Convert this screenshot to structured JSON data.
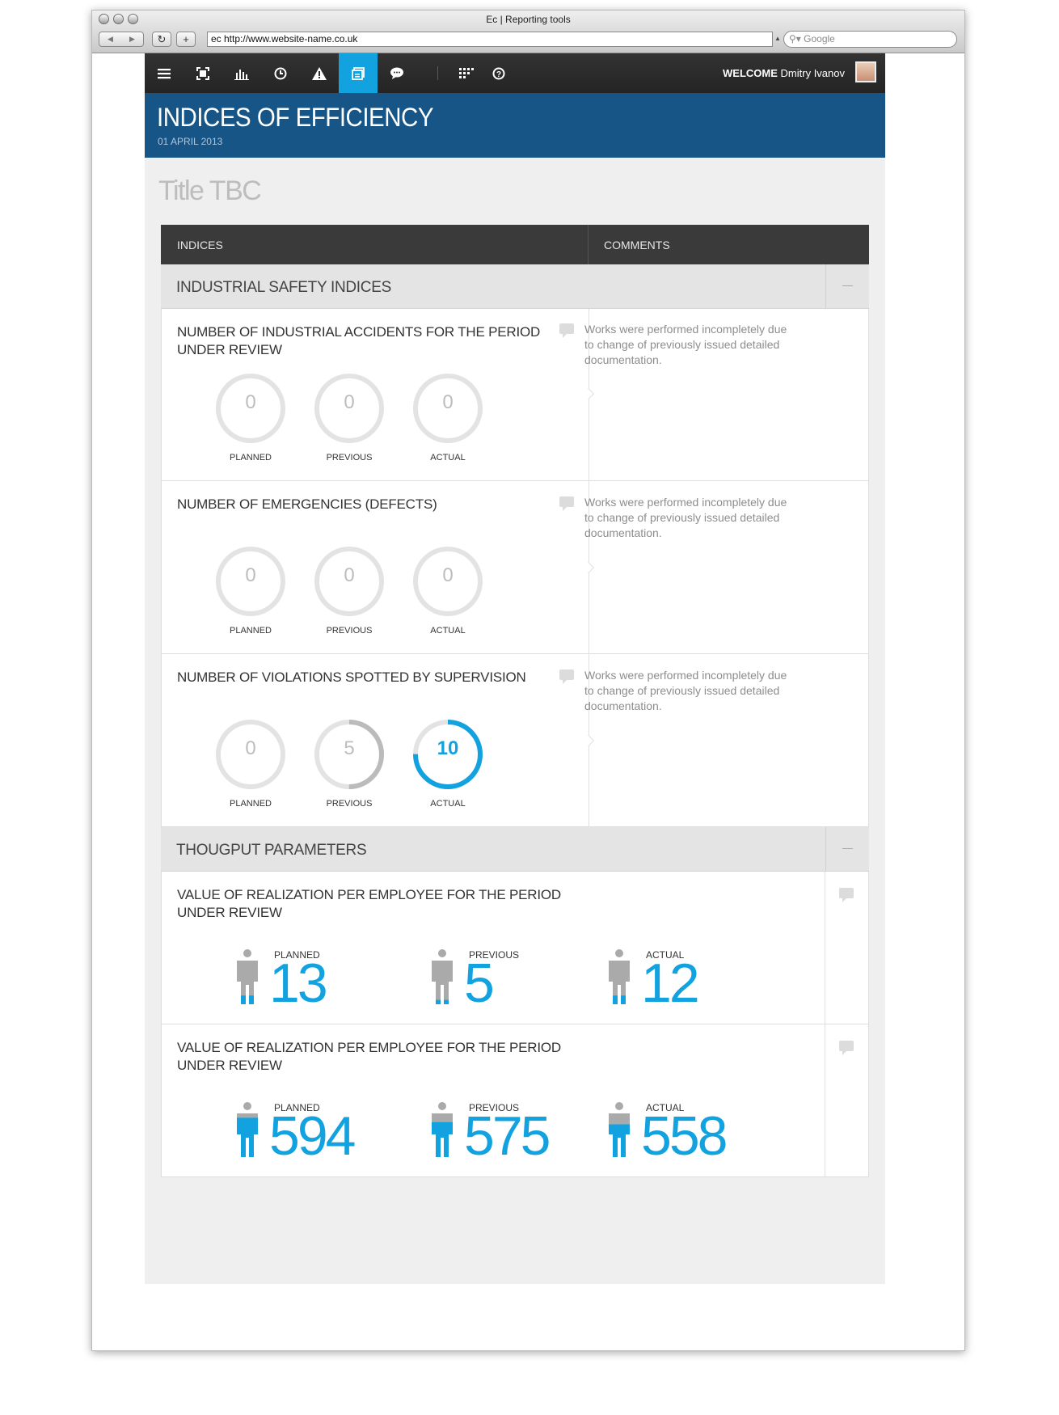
{
  "browser": {
    "window_title": "Ec  |  Reporting tools",
    "url": "ec http://www.website-name.co.uk",
    "search_placeholder": "Google"
  },
  "nav": {
    "icons": [
      "menu-icon",
      "expand-icon",
      "bar-chart-icon",
      "clock-icon",
      "warning-icon",
      "cards-icon",
      "chat-icon",
      "grid-icon",
      "help-icon"
    ],
    "active": "cards-icon",
    "welcome_label": "WELCOME",
    "user_name": "Dmitry Ivanov"
  },
  "header": {
    "title": "INDICES OF EFFICIENCY",
    "date": "01 APRIL 2013"
  },
  "page_title": "Title TBC",
  "table": {
    "col_indices": "INDICES",
    "col_comments": "COMMENTS"
  },
  "sections": [
    {
      "title": "INDUSTRIAL SAFETY INDICES",
      "rows": [
        {
          "title": "NUMBER OF INDUSTRIAL ACCIDENTS FOR THE PERIOD UNDER REVIEW",
          "gauges": [
            {
              "label": "PLANNED",
              "value": "0",
              "fill": 0
            },
            {
              "label": "PREVIOUS",
              "value": "0",
              "fill": 0
            },
            {
              "label": "ACTUAL",
              "value": "0",
              "fill": 0
            }
          ],
          "comment": "Works were performed incompletely due to change of previously issued detailed documentation."
        },
        {
          "title": "NUMBER OF EMERGENCIES (DEFECTS)",
          "gauges": [
            {
              "label": "PLANNED",
              "value": "0",
              "fill": 0
            },
            {
              "label": "PREVIOUS",
              "value": "0",
              "fill": 0
            },
            {
              "label": "ACTUAL",
              "value": "0",
              "fill": 0
            }
          ],
          "comment": "Works were performed incompletely due to change of previously issued detailed documentation."
        },
        {
          "title": "NUMBER OF VIOLATIONS SPOTTED BY SUPERVISION",
          "gauges": [
            {
              "label": "PLANNED",
              "value": "0",
              "fill": 0
            },
            {
              "label": "PREVIOUS",
              "value": "5",
              "fill": 0.5
            },
            {
              "label": "ACTUAL",
              "value": "10",
              "fill": 0.75
            }
          ],
          "comment": "Works were performed incompletely due to change of previously issued detailed documentation."
        }
      ]
    },
    {
      "title": "THOUGPUT PARAMETERS",
      "rows": [
        {
          "title": "VALUE OF REALIZATION PER EMPLOYEE FOR THE PERIOD UNDER REVIEW",
          "metrics": [
            {
              "label": "PLANNED",
              "value": "13",
              "fill": 0.2
            },
            {
              "label": "PREVIOUS",
              "value": "5",
              "fill": 0.1
            },
            {
              "label": "ACTUAL",
              "value": "12",
              "fill": 0.2
            }
          ]
        },
        {
          "title": "VALUE OF REALIZATION PER EMPLOYEE FOR THE PERIOD UNDER REVIEW",
          "metrics": [
            {
              "label": "PLANNED",
              "value": "594",
              "fill": 0.9
            },
            {
              "label": "PREVIOUS",
              "value": "575",
              "fill": 0.8
            },
            {
              "label": "ACTUAL",
              "value": "558",
              "fill": 0.75
            }
          ]
        }
      ]
    }
  ],
  "colors": {
    "accent": "#13a2e0",
    "banner": "#175586",
    "topnav": "#2b2b2b",
    "gauge_track": "#e3e3e3",
    "gauge_grey": "#bbbbbb"
  }
}
